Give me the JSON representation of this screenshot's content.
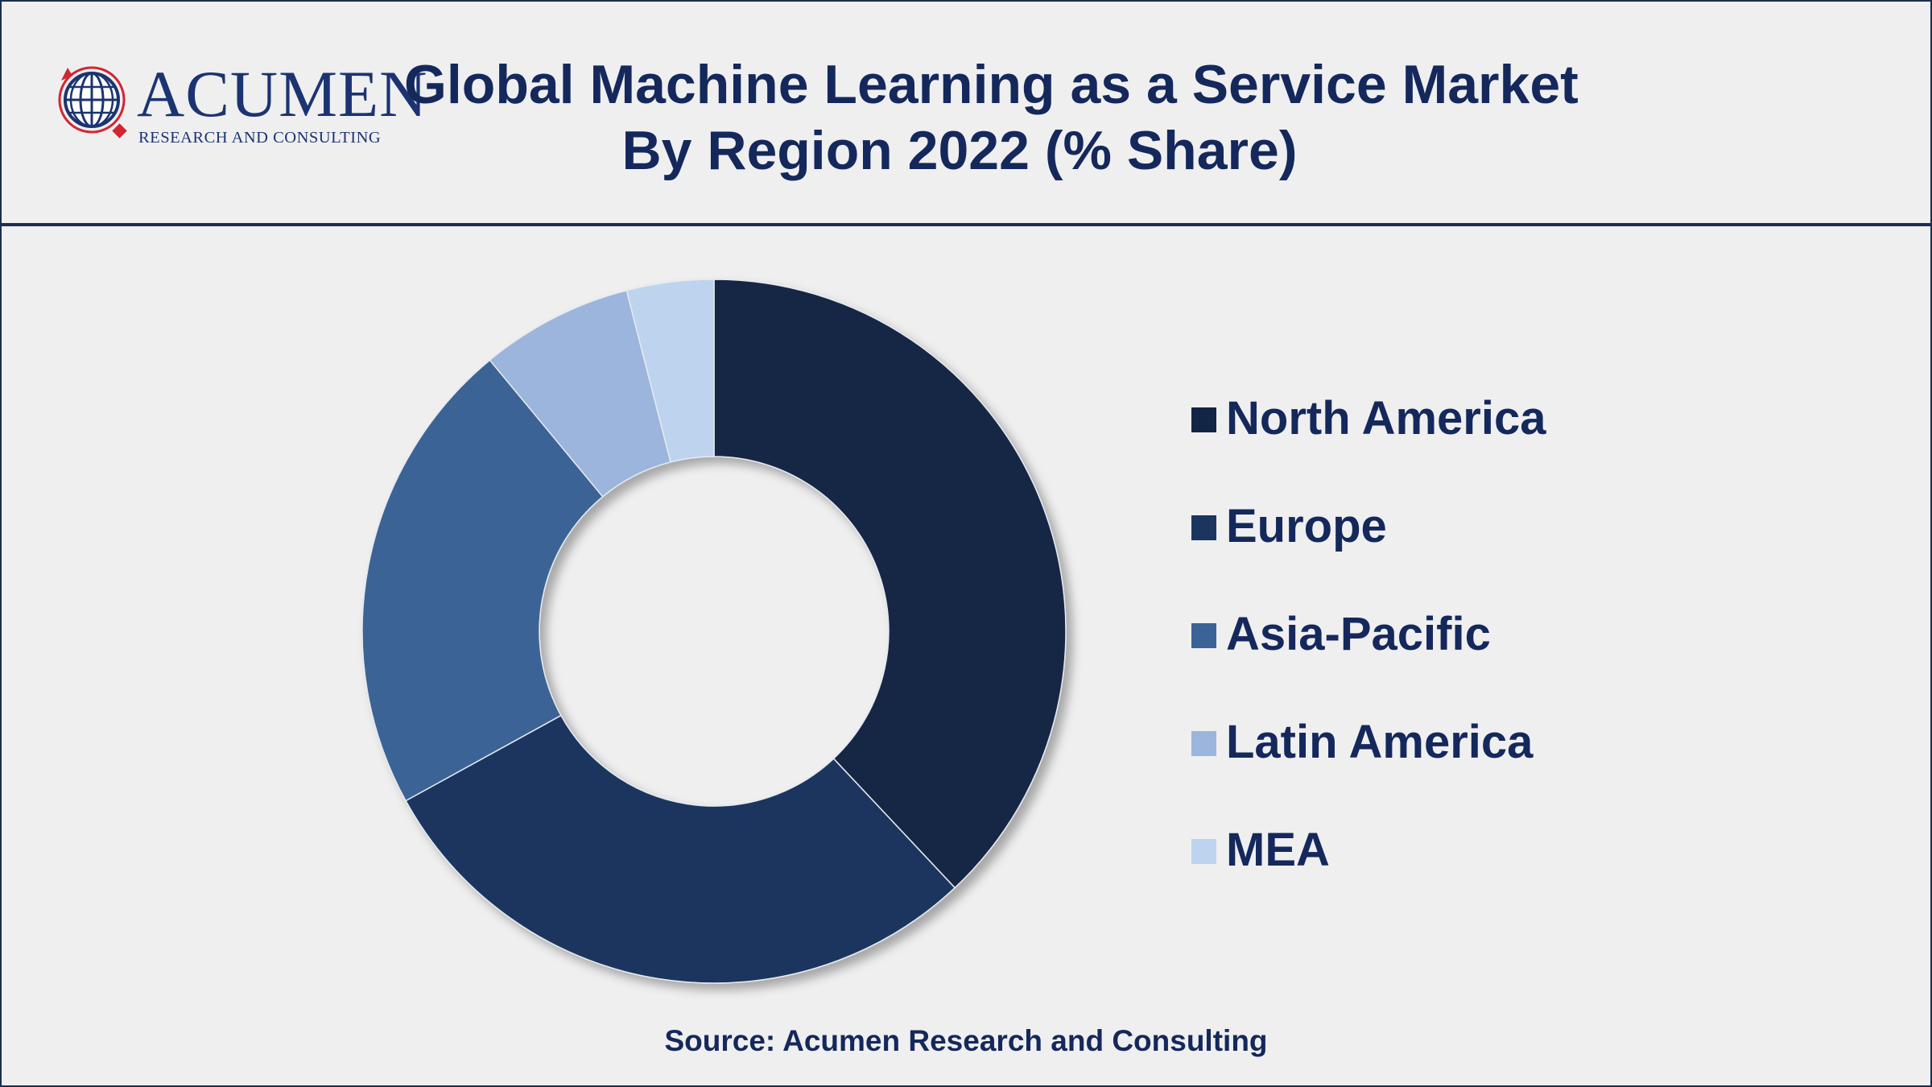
{
  "brand": {
    "name": "Acumen",
    "word": "ACUMEN",
    "tagline": "RESEARCH AND CONSULTING"
  },
  "title": {
    "line1": "Global Machine Learning as a Service Market",
    "line2": "By Region 2022 (% Share)"
  },
  "chart_data": {
    "type": "pie",
    "variant": "donut",
    "title": "Global Machine Learning as a Service Market By Region 2022 (% Share)",
    "unit": "%",
    "legend_position": "right",
    "series": [
      {
        "name": "North America",
        "value": 38,
        "color": "#132544"
      },
      {
        "name": "Europe",
        "value": 29,
        "color": "#1a365f"
      },
      {
        "name": "Asia-Pacific",
        "value": 22,
        "color": "#3b6395"
      },
      {
        "name": "Latin America",
        "value": 7,
        "color": "#9bb5dc"
      },
      {
        "name": "MEA",
        "value": 4,
        "color": "#bed3ee"
      }
    ]
  },
  "source": "Source: Acumen Research and Consulting",
  "colors": {
    "navy": "#14285c",
    "border": "#1b2e50",
    "background": "#efeff0",
    "logo_red": "#d22630"
  }
}
